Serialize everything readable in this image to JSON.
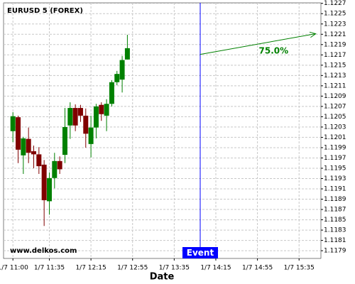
{
  "chart_data": {
    "type": "candlestick",
    "title": "EURUSD 5 (FOREX)",
    "x_label": "Date",
    "watermark": "www.delkos.com",
    "up_color": "#008000",
    "down_color": "#800000",
    "grid": true,
    "x": [
      660,
      665,
      670,
      675,
      680,
      685,
      690,
      695,
      700,
      705,
      710,
      715,
      720,
      725,
      730,
      735,
      740,
      745,
      750,
      755,
      760,
      765,
      770
    ],
    "open": [
      1.12022,
      1.12049,
      1.11975,
      1.12007,
      1.11983,
      1.11977,
      1.11957,
      1.11886,
      1.11931,
      1.11964,
      1.11976,
      1.12033,
      1.12067,
      1.12067,
      1.12052,
      1.11997,
      1.12029,
      1.12073,
      1.12052,
      1.12075,
      1.12117,
      1.12122,
      1.12161
    ],
    "high": [
      1.12059,
      1.12052,
      1.12011,
      1.12029,
      1.11994,
      1.11991,
      1.11966,
      1.11942,
      1.1198,
      1.11973,
      1.12067,
      1.12078,
      1.12074,
      1.12073,
      1.12066,
      1.12052,
      1.12075,
      1.12078,
      1.12084,
      1.12121,
      1.12139,
      1.12168,
      1.12209
    ],
    "low": [
      1.12001,
      1.1196,
      1.11939,
      1.1196,
      1.1195,
      1.11939,
      1.11838,
      1.1186,
      1.11911,
      1.11939,
      1.1196,
      1.12007,
      1.12022,
      1.1204,
      1.1199,
      1.11971,
      1.12008,
      1.12042,
      1.12022,
      1.1207,
      1.12111,
      1.12097,
      1.12161
    ],
    "close": [
      1.12051,
      1.11986,
      1.12008,
      1.1198,
      1.11977,
      1.11954,
      1.11888,
      1.11931,
      1.11964,
      1.11948,
      1.1203,
      1.12067,
      1.12033,
      1.12052,
      1.12017,
      1.12029,
      1.1207,
      1.12055,
      1.12075,
      1.12117,
      1.12133,
      1.1216,
      1.12183
    ],
    "xlim": [
      651,
      956
    ],
    "xticks": [
      {
        "value": 660,
        "label": "1/7 11:00"
      },
      {
        "value": 695,
        "label": "1/7 11:35"
      },
      {
        "value": 735,
        "label": "1/7 12:15"
      },
      {
        "value": 775,
        "label": "1/7 12:55"
      },
      {
        "value": 815,
        "label": "1/7 13:35"
      },
      {
        "value": 855,
        "label": "1/7 14:15"
      },
      {
        "value": 895,
        "label": "1/7 14:55"
      },
      {
        "value": 935,
        "label": "1/7 15:35"
      }
    ],
    "ylim": [
      1.11775,
      1.12271
    ],
    "yticks": [
      1.1179,
      1.1181,
      1.1183,
      1.1185,
      1.1187,
      1.1189,
      1.1191,
      1.1193,
      1.1195,
      1.1197,
      1.1199,
      1.1201,
      1.1203,
      1.1205,
      1.1207,
      1.1209,
      1.1211,
      1.1213,
      1.1215,
      1.1217,
      1.1219,
      1.1221,
      1.1223,
      1.1225,
      1.1227
    ],
    "event": {
      "x": 840,
      "label": "Event",
      "color": "#0000ff"
    },
    "arrow": {
      "x": [
        840,
        951
      ],
      "y": [
        1.12171,
        1.12211
      ],
      "label": "75.0%",
      "color": "#008000"
    }
  }
}
